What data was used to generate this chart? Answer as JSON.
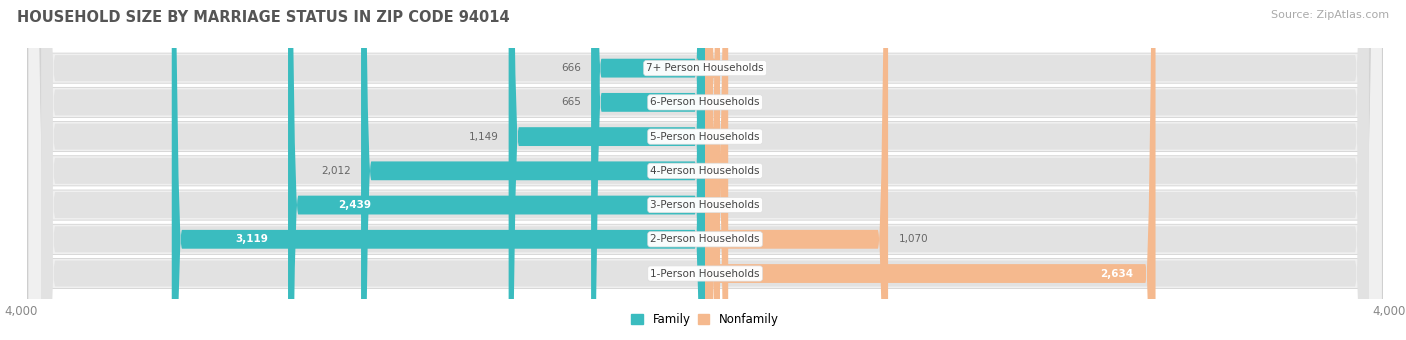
{
  "title": "HOUSEHOLD SIZE BY MARRIAGE STATUS IN ZIP CODE 94014",
  "source": "Source: ZipAtlas.com",
  "categories": [
    "7+ Person Households",
    "6-Person Households",
    "5-Person Households",
    "4-Person Households",
    "3-Person Households",
    "2-Person Households",
    "1-Person Households"
  ],
  "family_values": [
    666,
    665,
    1149,
    2012,
    2439,
    3119,
    0
  ],
  "nonfamily_values": [
    11,
    0,
    27,
    135,
    87,
    1070,
    2634
  ],
  "family_color": "#3abcbf",
  "nonfamily_color": "#f5b98e",
  "axis_max": 4000,
  "row_bg_color": "#e2e2e2",
  "row_bg_outer": "#f0f0f0",
  "title_fontsize": 10.5,
  "source_fontsize": 8,
  "tick_label": "4,000",
  "legend_family": "Family",
  "legend_nonfamily": "Nonfamily",
  "label_inside_threshold": 2439
}
